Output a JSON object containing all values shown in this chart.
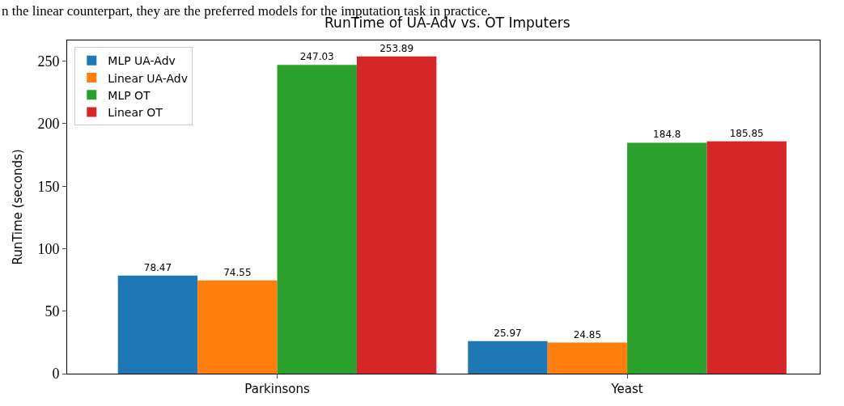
{
  "chart_data": {
    "type": "bar",
    "title": "RunTime of UA-Adv vs. OT Imputers",
    "ylabel": "RunTime (seconds)",
    "annotations": [
      "n the linear counterpart, they are the preferred models for the imputation task in practice."
    ],
    "categories": [
      "Parkinsons",
      "Yeast"
    ],
    "series": [
      {
        "name": "MLP UA-Adv",
        "color": "#1f77b4",
        "values": [
          78.47,
          25.97
        ]
      },
      {
        "name": "Linear UA-Adv",
        "color": "#ff7f0e",
        "values": [
          74.55,
          24.85
        ]
      },
      {
        "name": "MLP OT",
        "color": "#2ca02c",
        "values": [
          247.03,
          184.8
        ]
      },
      {
        "name": "Linear OT",
        "color": "#d62728",
        "values": [
          253.89,
          185.85
        ]
      }
    ],
    "ylim": [
      0,
      266.6
    ],
    "yticks": [
      0,
      50,
      100,
      150,
      200,
      250
    ],
    "data_labels": true,
    "legend": "top left"
  }
}
